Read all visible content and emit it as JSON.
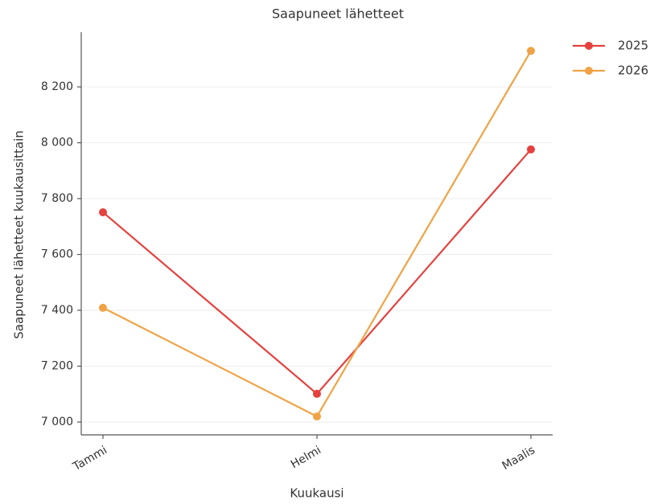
{
  "chart_data": {
    "type": "line",
    "title": "Saapuneet lähetteet",
    "x_label": "Kuukausi",
    "y_label": "Saapuneet lähetteet kuukausittain",
    "categories": [
      "Tammi",
      "Helmi",
      "Maalis"
    ],
    "series": [
      {
        "name": "2025",
        "color": "#e5413e",
        "values": [
          7751,
          7101,
          7976
        ]
      },
      {
        "name": "2026",
        "color": "#f0a346",
        "values": [
          7409,
          7020,
          8329
        ]
      }
    ],
    "ylim": [
      6954,
      8396
    ],
    "yticks": [
      {
        "value": 7000,
        "label": "7 000"
      },
      {
        "value": 7200,
        "label": "7 200"
      },
      {
        "value": 7400,
        "label": "7 400"
      },
      {
        "value": 7600,
        "label": "7 600"
      },
      {
        "value": 7800,
        "label": "7 800"
      },
      {
        "value": 8000,
        "label": "8 000"
      },
      {
        "value": 8200,
        "label": "8 200"
      }
    ],
    "grid": true,
    "legend": "upper right"
  }
}
